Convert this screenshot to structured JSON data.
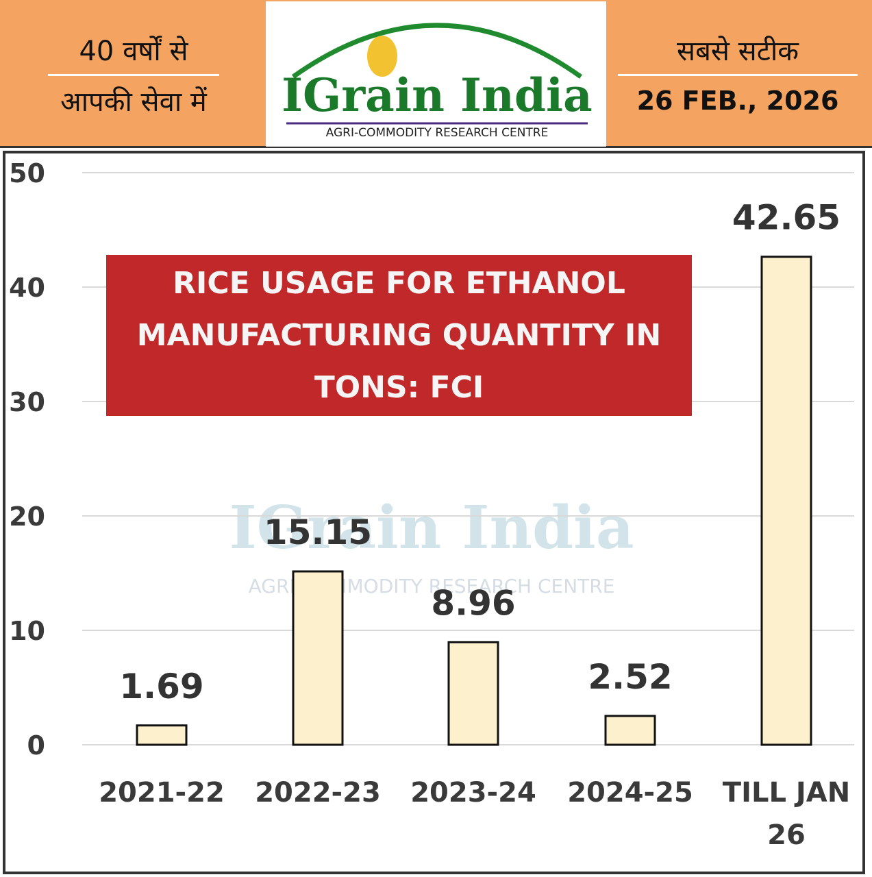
{
  "header": {
    "left_line1": "40 वर्षों से",
    "left_line2": "आपकी सेवा में",
    "logo": "IGrain India",
    "logo_subtitle": "AGRI-COMMODITY RESEARCH CENTRE",
    "right_line1": "सबसे सटीक",
    "date": "26 FEB., 2026"
  },
  "chart_data": {
    "type": "bar",
    "title": "RICE USAGE FOR ETHANOL MANUFACTURING QUANTITY IN TONS: FCI",
    "categories": [
      "2021-22",
      "2022-23",
      "2023-24",
      "2024-25",
      "TILL JAN 26"
    ],
    "values": [
      1.69,
      15.15,
      8.96,
      2.52,
      42.65
    ],
    "color": "#fdf0cc",
    "ylim": [
      0,
      50
    ],
    "yticks": [
      0,
      10,
      20,
      30,
      40,
      50
    ],
    "grid": true
  }
}
